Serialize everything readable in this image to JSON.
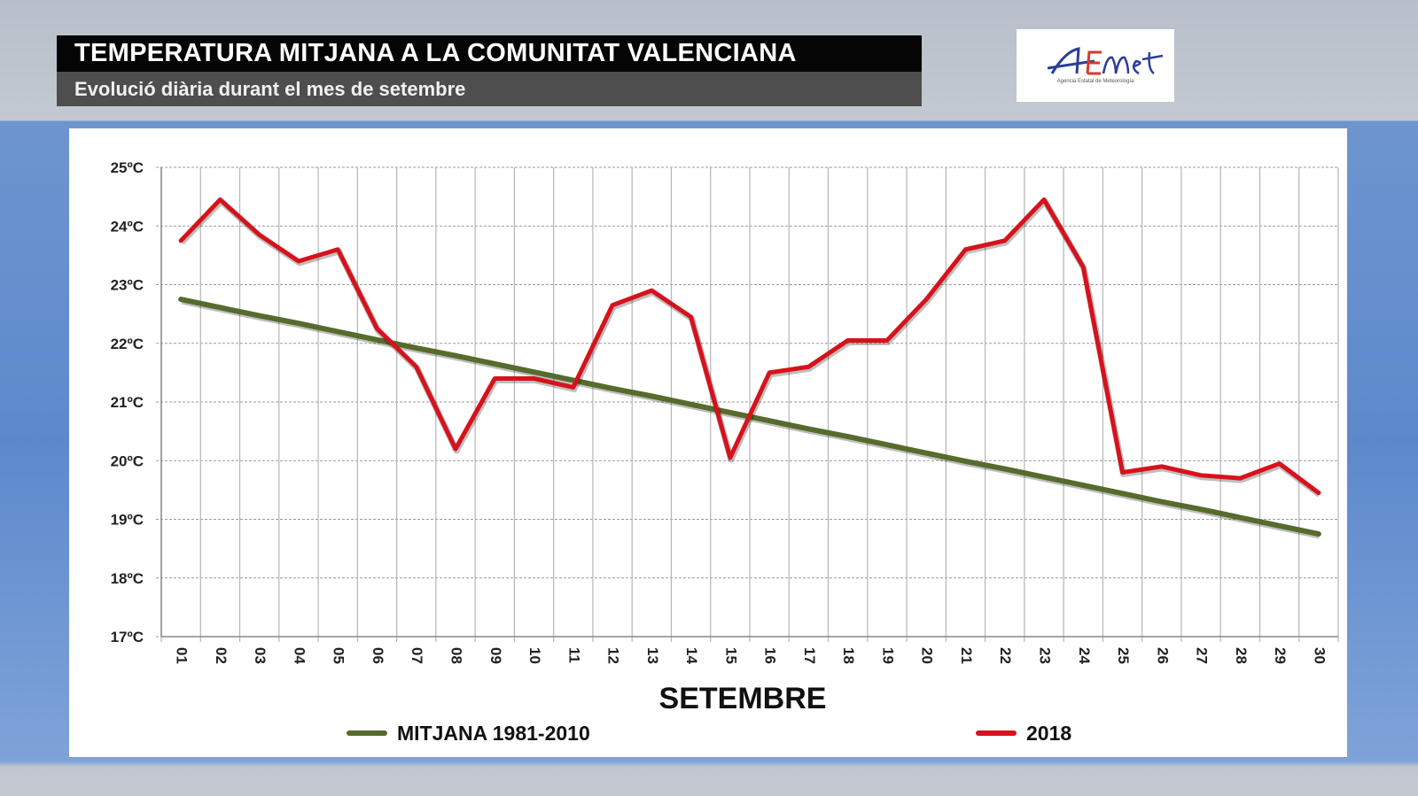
{
  "header": {
    "title": "TEMPERATURA MITJANA A LA COMUNITAT VALENCIANA",
    "subtitle": "Evolució diària durant el mes de setembre"
  },
  "logo": {
    "text": "AEmet",
    "tagline": "Agencia Estatal de Meteorología"
  },
  "chart_data": {
    "type": "line",
    "title": "TEMPERATURA MITJANA A LA COMUNITAT VALENCIANA",
    "xlabel": "SETEMBRE",
    "ylabel": "",
    "ylim": [
      17,
      25
    ],
    "yticks": [
      "17ºC",
      "18ºC",
      "19ºC",
      "20ºC",
      "21ºC",
      "22ºC",
      "23ºC",
      "24ºC",
      "25ºC"
    ],
    "categories": [
      "01",
      "02",
      "03",
      "04",
      "05",
      "06",
      "07",
      "08",
      "09",
      "10",
      "11",
      "12",
      "13",
      "14",
      "15",
      "16",
      "17",
      "18",
      "19",
      "20",
      "21",
      "22",
      "23",
      "24",
      "25",
      "26",
      "27",
      "28",
      "29",
      "30"
    ],
    "grid": true,
    "legend_placement": "bottom",
    "series": [
      {
        "name": "MITJANA 1981-2010",
        "color": "#566b2c",
        "values": [
          22.75,
          22.61,
          22.47,
          22.34,
          22.2,
          22.06,
          21.92,
          21.79,
          21.65,
          21.51,
          21.37,
          21.23,
          21.1,
          20.96,
          20.82,
          20.68,
          20.54,
          20.41,
          20.27,
          20.13,
          19.99,
          19.86,
          19.72,
          19.58,
          19.44,
          19.3,
          19.17,
          19.03,
          18.89,
          18.75
        ]
      },
      {
        "name": "2018",
        "color": "#d7121c",
        "values": [
          23.75,
          24.45,
          23.85,
          23.4,
          23.6,
          22.25,
          21.6,
          20.2,
          21.4,
          21.4,
          21.25,
          22.65,
          22.9,
          22.45,
          20.05,
          21.5,
          21.6,
          22.05,
          22.05,
          22.75,
          23.6,
          23.75,
          24.45,
          23.3,
          19.8,
          19.9,
          19.75,
          19.7,
          19.95,
          19.45
        ]
      }
    ]
  }
}
